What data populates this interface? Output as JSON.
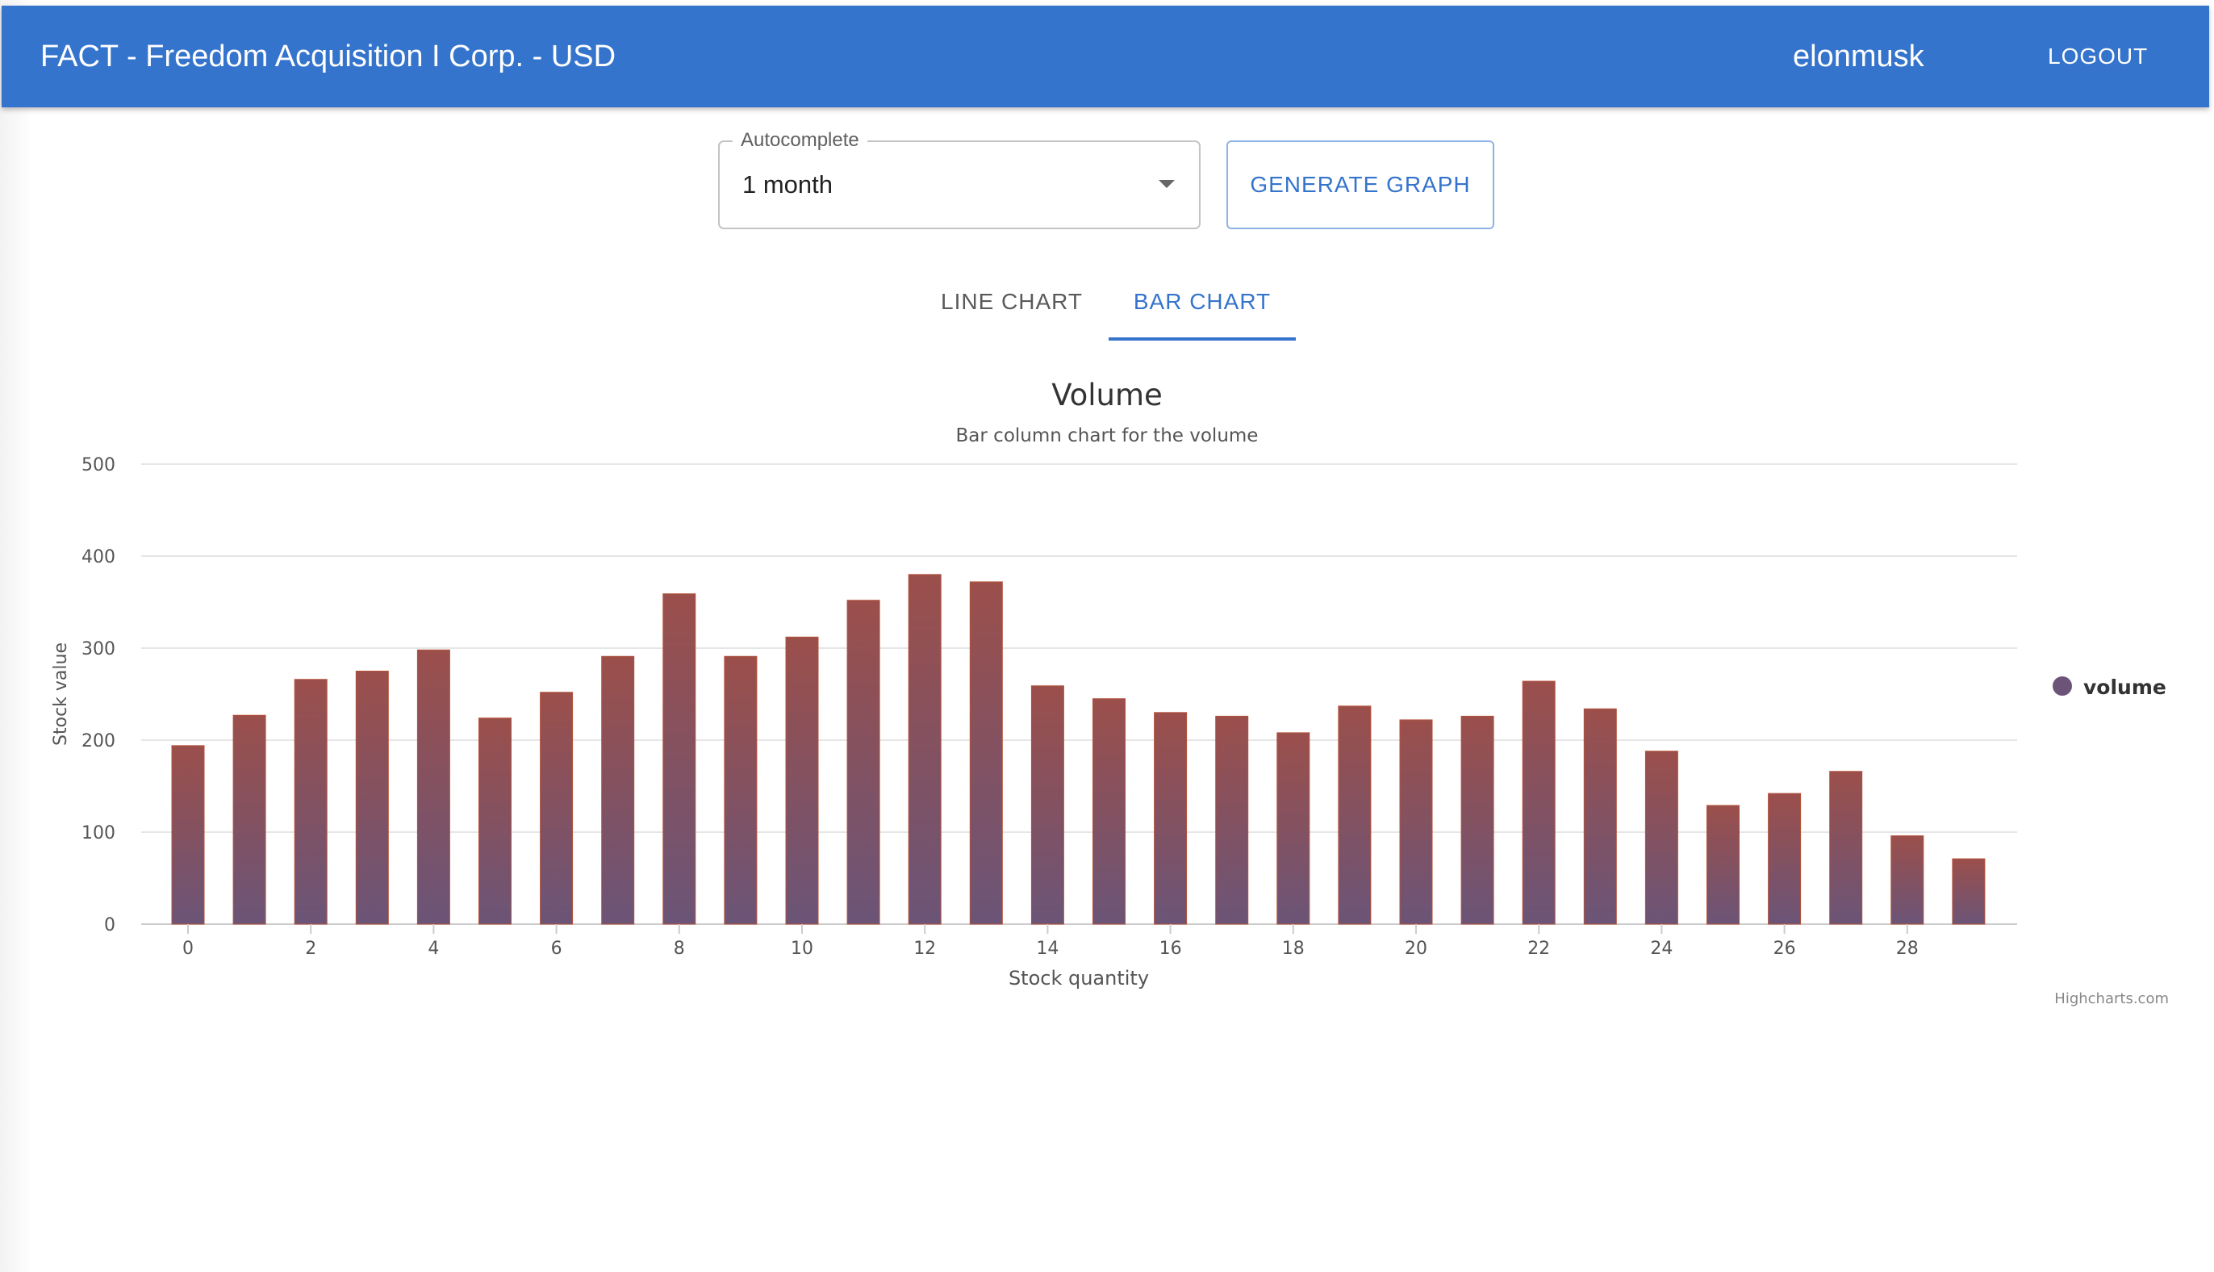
{
  "appbar": {
    "title": "FACT - Freedom Acquisition I Corp. - USD",
    "username": "elonmusk",
    "logout_label": "LOGOUT",
    "color": "#3574cc"
  },
  "controls": {
    "select_label": "Autocomplete",
    "select_value": "1 month",
    "generate_label": "GENERATE GRAPH"
  },
  "tabs": [
    {
      "label": "LINE CHART",
      "active": false
    },
    {
      "label": "BAR CHART",
      "active": true
    }
  ],
  "chart_data": {
    "type": "bar",
    "title": "Volume",
    "subtitle": "Bar column chart for the volume",
    "xlabel": "Stock quantity",
    "ylabel": "Stock value",
    "x": [
      0,
      1,
      2,
      3,
      4,
      5,
      6,
      7,
      8,
      9,
      10,
      11,
      12,
      13,
      14,
      15,
      16,
      17,
      18,
      19,
      20,
      21,
      22,
      23,
      24,
      25,
      26,
      27,
      28,
      29
    ],
    "x_tick_labels": [
      "0",
      "2",
      "4",
      "6",
      "8",
      "10",
      "12",
      "14",
      "16",
      "18",
      "20",
      "22",
      "24",
      "26",
      "28"
    ],
    "y_tick_labels": [
      "0",
      "100",
      "200",
      "300",
      "400",
      "500"
    ],
    "ylim": [
      0,
      500
    ],
    "grid": true,
    "legend_position": "right",
    "series": [
      {
        "name": "volume",
        "values": [
          194,
          227,
          266,
          275,
          298,
          224,
          252,
          291,
          359,
          291,
          312,
          352,
          380,
          372,
          259,
          245,
          230,
          226,
          208,
          237,
          222,
          226,
          264,
          234,
          188,
          129,
          142,
          166,
          96,
          71
        ],
        "color_top": "#9b4f4b",
        "color_bottom": "#6b5477"
      }
    ],
    "credits": "Highcharts.com"
  }
}
